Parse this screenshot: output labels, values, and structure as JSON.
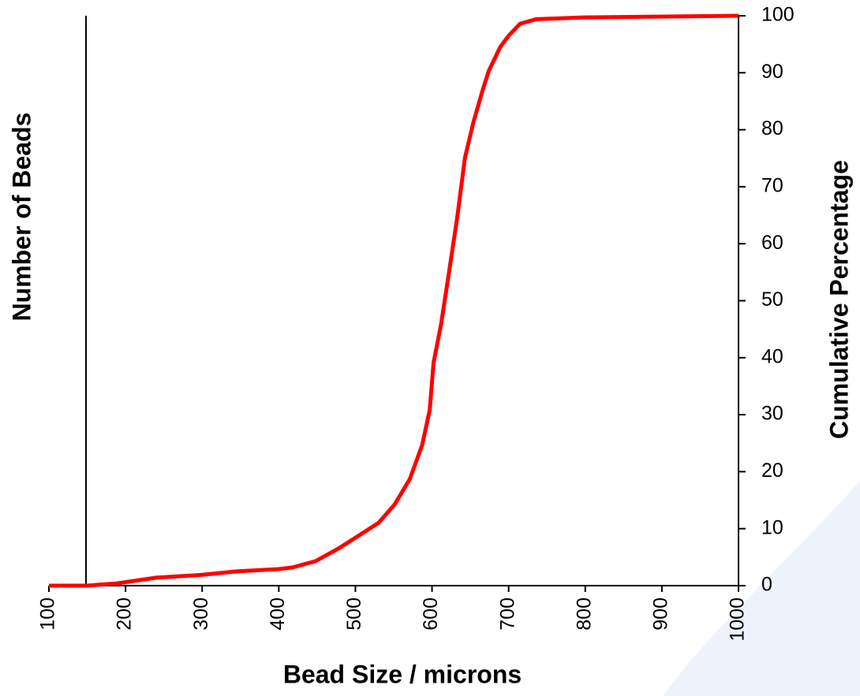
{
  "chart_data": {
    "type": "line",
    "x_label": "Bead Size / microns",
    "y_label": "Number of Beads",
    "y2_label": "Cumulative Percentage",
    "xlim": [
      100,
      1000
    ],
    "xticks": [
      100,
      200,
      300,
      400,
      500,
      600,
      700,
      800,
      900,
      1000
    ],
    "y2lim": [
      0,
      100
    ],
    "y2ticks": [
      0,
      10,
      20,
      30,
      40,
      50,
      60,
      70,
      80,
      90,
      100
    ],
    "color": "#ff0000",
    "axis": "y2",
    "x": [
      100,
      150,
      189,
      240,
      300,
      345,
      400,
      418,
      448,
      479,
      500,
      530,
      551,
      571,
      587,
      597,
      602,
      612,
      623,
      633,
      643,
      654,
      666,
      674,
      689,
      700,
      715,
      736,
      798,
      1000
    ],
    "values": [
      0,
      0,
      0.4,
      1.4,
      1.9,
      2.5,
      2.9,
      3.2,
      4.3,
      6.6,
      8.4,
      11,
      14.2,
      18.7,
      24.6,
      30.8,
      39.1,
      46,
      55.7,
      64.7,
      75.1,
      81.3,
      86.9,
      90.3,
      94.5,
      96.5,
      98.6,
      99.4,
      99.7,
      100
    ]
  }
}
